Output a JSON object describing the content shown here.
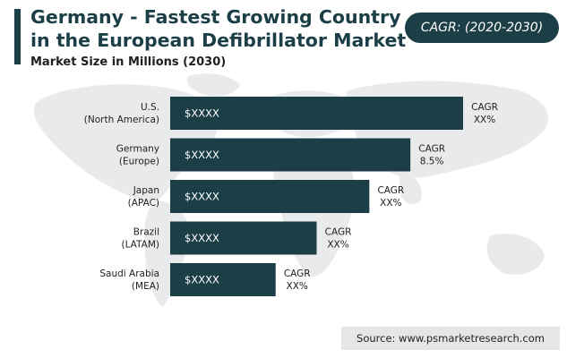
{
  "header": {
    "title": "Germany - Fastest Growing Country in the European Defibrillator Market",
    "cagr_badge": "CAGR: (2020-2030)"
  },
  "chart_data": {
    "type": "bar",
    "orientation": "horizontal",
    "subtitle": "Market Size in Millions (2030)",
    "categories": [
      {
        "name": "U.S.",
        "region": "(North America)"
      },
      {
        "name": "Germany",
        "region": "(Europe)"
      },
      {
        "name": "Japan",
        "region": "(APAC)"
      },
      {
        "name": "Brazil",
        "region": "(LATAM)"
      },
      {
        "name": "Saudi Arabia",
        "region": "(MEA)"
      }
    ],
    "value_labels": [
      "$XXXX",
      "$XXXX",
      "$XXXX",
      "$XXXX",
      "$XXXX"
    ],
    "relative_bar_lengths": [
      1.0,
      0.82,
      0.68,
      0.5,
      0.36
    ],
    "cagr_title": "CAGR",
    "cagr_values": [
      "XX%",
      "8.5%",
      "XX%",
      "XX%",
      "XX%"
    ],
    "bar_color": "#1c3f47",
    "grid": false,
    "legend": "none"
  },
  "footer": {
    "source": "Source: www.psmarketresearch.com"
  }
}
